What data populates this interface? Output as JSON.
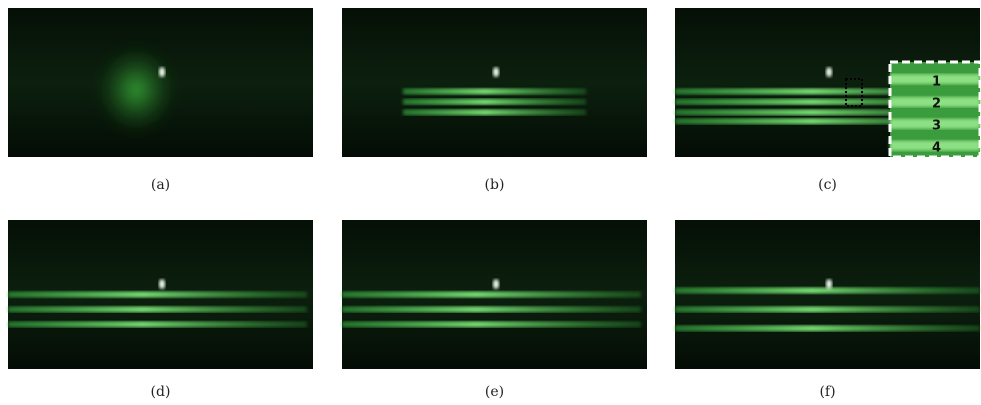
{
  "panels": [
    {
      "caption": "(a)"
    },
    {
      "caption": "(b)"
    },
    {
      "caption": "(c)"
    },
    {
      "caption": "(d)"
    },
    {
      "caption": "(e)"
    },
    {
      "caption": "(f)"
    }
  ],
  "inset": {
    "labels": [
      "1",
      "2",
      "3",
      "4"
    ]
  }
}
